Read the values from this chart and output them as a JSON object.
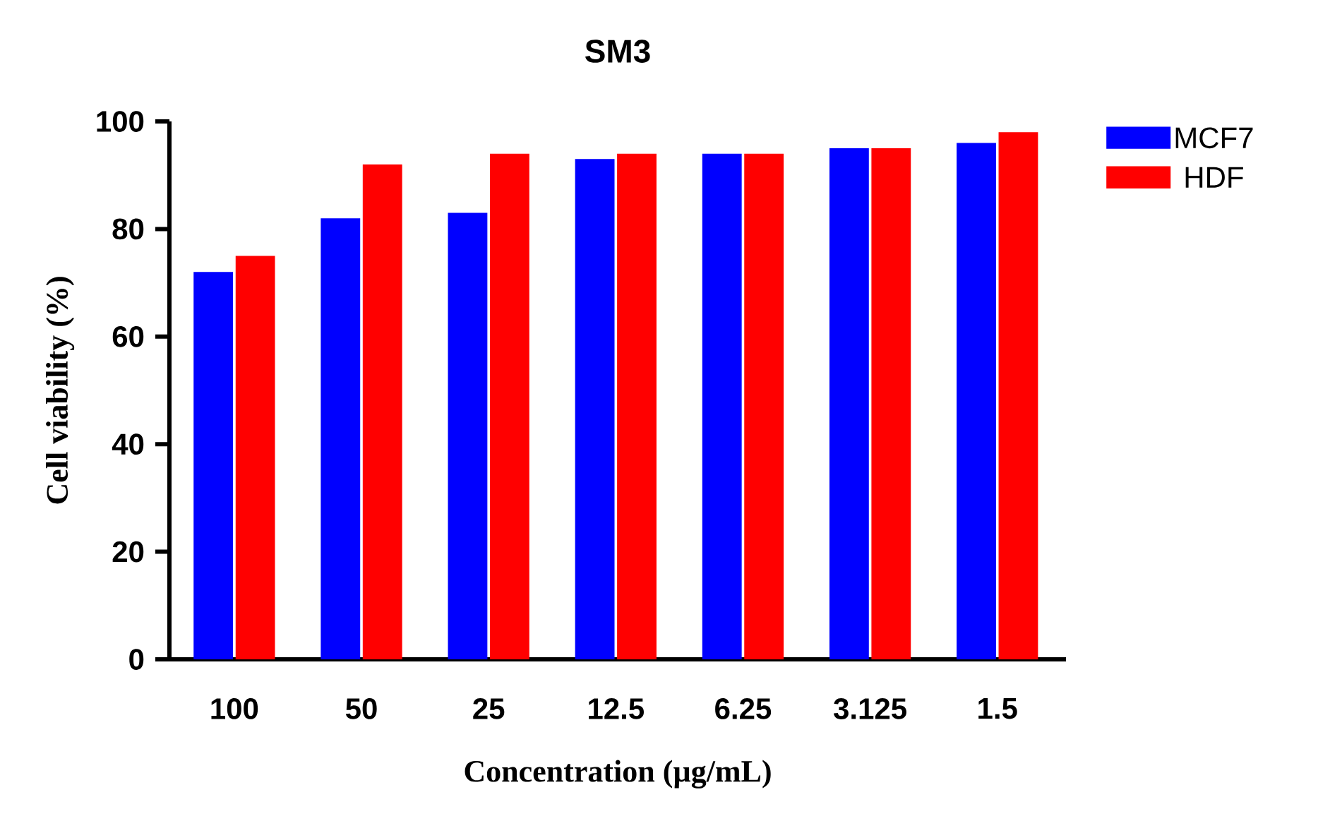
{
  "chart_data": {
    "type": "bar",
    "title": "SM3",
    "xlabel": "Concentration (µg/mL)",
    "ylabel": "Cell viability (%)",
    "categories": [
      "100",
      "50",
      "25",
      "12.5",
      "6.25",
      "3.125",
      "1.5"
    ],
    "series": [
      {
        "name": "MCF7",
        "color": "#0000ff",
        "values": [
          72,
          82,
          83,
          93,
          94,
          95,
          96
        ]
      },
      {
        "name": "HDF",
        "color": "#ff0000",
        "values": [
          75,
          92,
          94,
          94,
          94,
          95,
          98
        ]
      }
    ],
    "ylim": [
      0,
      100
    ],
    "yticks": [
      0,
      20,
      40,
      60,
      80,
      100
    ],
    "legend": "top right",
    "grid": false
  }
}
